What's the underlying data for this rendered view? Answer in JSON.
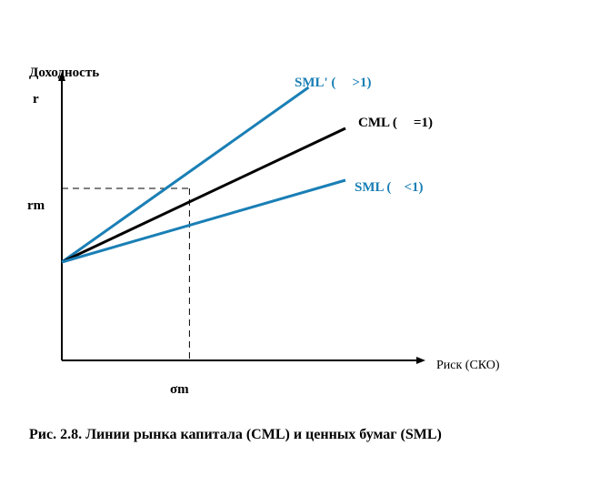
{
  "chart_data": {
    "type": "line",
    "title": "",
    "ylabel": "Доходность",
    "xlabel": "Риск (СКО)",
    "y_ticks": [
      "r",
      "rm"
    ],
    "x_ticks": [
      "σm"
    ],
    "grid": false,
    "reference": {
      "x_label": "σm",
      "y_label": "rm",
      "x": 0.45,
      "y": 0.63
    },
    "series": [
      {
        "name": "SML' (β>1)",
        "color": "#1a7fb5",
        "points": [
          [
            0,
            0.36
          ],
          [
            0.87,
            1.0
          ]
        ]
      },
      {
        "name": "CML (β=1)",
        "color": "#000000",
        "points": [
          [
            0,
            0.36
          ],
          [
            1.0,
            0.85
          ]
        ]
      },
      {
        "name": "SML (β<1)",
        "color": "#1a7fb5",
        "points": [
          [
            0,
            0.36
          ],
          [
            1.0,
            0.66
          ]
        ]
      }
    ],
    "series_labels": [
      {
        "prefix": "SML' (",
        "suffix": ">1)"
      },
      {
        "prefix": "CML (",
        "suffix": "=1)"
      },
      {
        "prefix": "SML (",
        "suffix": "<1)"
      }
    ],
    "xlim": [
      0,
      1.3
    ],
    "ylim": [
      0,
      1.0
    ]
  },
  "caption": "Рис.  2.8. Линии рынка капитала (CML) и ценных бумаг (SML)"
}
